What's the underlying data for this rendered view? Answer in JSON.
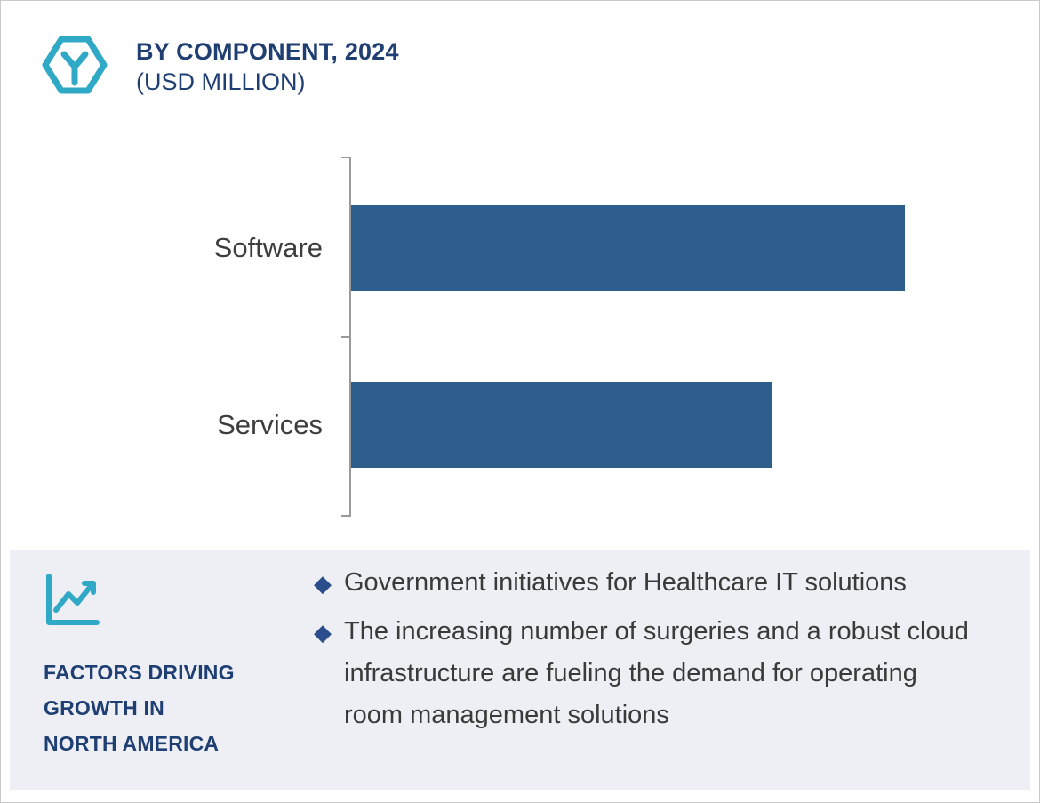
{
  "colors": {
    "navy": "#1f3e72",
    "teal": "#2fa9c6",
    "bar_blue": "#2e5f8c",
    "panel_bg": "#edeff4",
    "body_text": "#3a3a3a",
    "axis_gray": "#9a9a9a"
  },
  "header": {
    "logo_icon": "hexagon-y-logo-icon",
    "title_line1": "BY COMPONENT, 2024",
    "title_line2": "(USD MILLION)"
  },
  "chart_data": {
    "type": "bar",
    "orientation": "horizontal",
    "title": "BY COMPONENT, 2024 (USD MILLION)",
    "categories": [
      "Software",
      "Services"
    ],
    "values": [
      100,
      76
    ],
    "values_note": "No numeric axis shown in the figure; values are relative bar lengths as percent of the longest bar.",
    "xlabel": "",
    "ylabel": "",
    "grid": false,
    "legend": false,
    "bar_color": "#2e5f8c"
  },
  "factors_panel": {
    "icon": "trend-line-chart-icon",
    "heading": "FACTORS DRIVING GROWTH IN NORTH AMERICA",
    "heading_lines": [
      "FACTORS DRIVING",
      "GROWTH IN",
      "NORTH AMERICA"
    ],
    "bullet_marker_glyph": "◆",
    "bullets": [
      "Government initiatives for Healthcare IT solutions",
      "The increasing number of surgeries and a robust cloud infrastructure are fueling the demand for operating room management solutions"
    ]
  }
}
